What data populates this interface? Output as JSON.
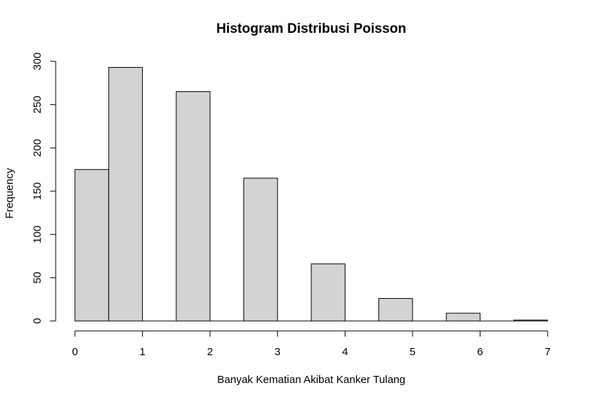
{
  "chart_data": {
    "type": "bar",
    "title": "Histogram Distribusi Poisson",
    "xlabel": "Banyak Kematian Akibat Kanker Tulang",
    "ylabel": "Frequency",
    "bar_color": "#d3d3d3",
    "bins": [
      {
        "x0": 0.0,
        "x1": 0.5,
        "count": 175
      },
      {
        "x0": 0.5,
        "x1": 1.0,
        "count": 293
      },
      {
        "x0": 1.0,
        "x1": 1.5,
        "count": 0
      },
      {
        "x0": 1.5,
        "x1": 2.0,
        "count": 265
      },
      {
        "x0": 2.0,
        "x1": 2.5,
        "count": 0
      },
      {
        "x0": 2.5,
        "x1": 3.0,
        "count": 165
      },
      {
        "x0": 3.0,
        "x1": 3.5,
        "count": 0
      },
      {
        "x0": 3.5,
        "x1": 4.0,
        "count": 66
      },
      {
        "x0": 4.0,
        "x1": 4.5,
        "count": 0
      },
      {
        "x0": 4.5,
        "x1": 5.0,
        "count": 26
      },
      {
        "x0": 5.0,
        "x1": 5.5,
        "count": 0
      },
      {
        "x0": 5.5,
        "x1": 6.0,
        "count": 9
      },
      {
        "x0": 6.0,
        "x1": 6.5,
        "count": 0
      },
      {
        "x0": 6.5,
        "x1": 7.0,
        "count": 1
      }
    ],
    "xlim": [
      0,
      7
    ],
    "ylim": [
      0,
      300
    ],
    "xticks": [
      0,
      1,
      2,
      3,
      4,
      5,
      6,
      7
    ],
    "yticks": [
      0,
      50,
      100,
      150,
      200,
      250,
      300
    ],
    "grid": false
  }
}
